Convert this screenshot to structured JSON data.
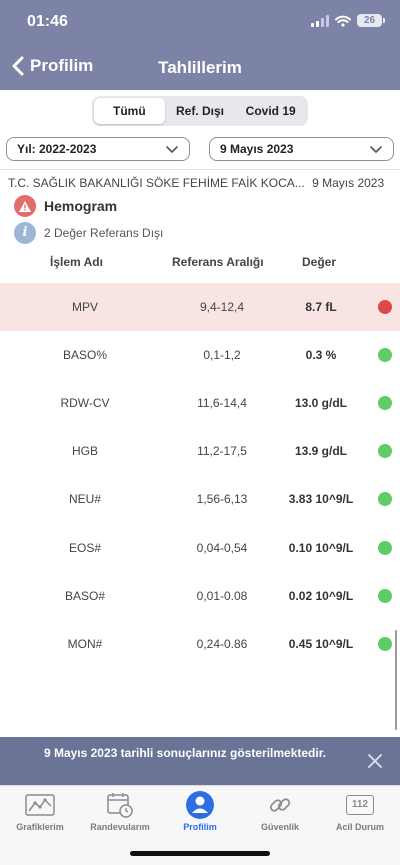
{
  "status": {
    "time": "01:46",
    "battery": "26"
  },
  "nav": {
    "back_label": "Profilim",
    "title": "Tahlillerim"
  },
  "segments": [
    "Tümü",
    "Ref. Dışı",
    "Covid 19"
  ],
  "filters": {
    "year": "Yıl: 2022-2023",
    "date": "9 Mayıs 2023"
  },
  "result": {
    "hospital": "T.C. SAĞLIK BAKANLIĞI SÖKE FEHİME FAİK KOCA...",
    "date": "9 Mayıs 2023",
    "test_name": "Hemogram",
    "summary": "2 Değer Referans Dışı"
  },
  "table": {
    "headers": {
      "name": "İşlem Adı",
      "range": "Referans Aralığı",
      "value": "Değer"
    },
    "rows": [
      {
        "name": "MPV",
        "range": "9,4-12,4",
        "value": "8.7 fL",
        "status": "out"
      },
      {
        "name": "BASO%",
        "range": "0,1-1,2",
        "value": "0.3 %",
        "status": "normal"
      },
      {
        "name": "RDW-CV",
        "range": "11,6-14,4",
        "value": "13.0 g/dL",
        "status": "normal"
      },
      {
        "name": "HGB",
        "range": "11,2-17,5",
        "value": "13.9 g/dL",
        "status": "normal"
      },
      {
        "name": "NEU#",
        "range": "1,56-6,13",
        "value": "3.83 10^9/L",
        "status": "normal"
      },
      {
        "name": "EOS#",
        "range": "0,04-0,54",
        "value": "0.10 10^9/L",
        "status": "normal"
      },
      {
        "name": "BASO#",
        "range": "0,01-0.08",
        "value": "0.02 10^9/L",
        "status": "normal"
      },
      {
        "name": "MON#",
        "range": "0,24-0.86",
        "value": "0.45 10^9/L",
        "status": "normal"
      }
    ]
  },
  "banner": {
    "text": "9 Mayıs 2023 tarihli sonuçlarınız gösterilmektedir."
  },
  "tabs": [
    {
      "label": "Grafiklerim",
      "icon": "chart-icon"
    },
    {
      "label": "Randevularım",
      "icon": "calendar-clock-icon"
    },
    {
      "label": "Profilim",
      "icon": "profile-icon"
    },
    {
      "label": "Güvenlik",
      "icon": "link-icon"
    },
    {
      "label": "Acil Durum",
      "icon": "emergency-112-icon",
      "icon_text": "112"
    }
  ],
  "colors": {
    "header": "#7c83a7",
    "alert": "#e04848",
    "ok": "#5fcc66",
    "active_tab": "#2d6fe0"
  }
}
